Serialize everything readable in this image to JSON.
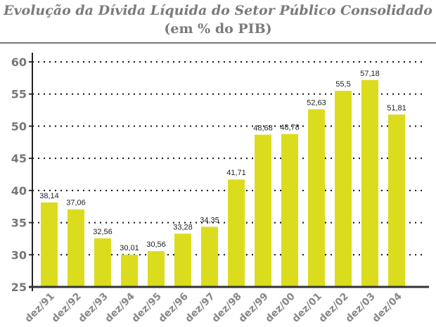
{
  "chart_data": {
    "type": "bar",
    "title": "Evolução da Dívida Líquida do Setor Público Consolidado",
    "subtitle": "(em % do PIB)",
    "categories": [
      "dez/91",
      "dez/92",
      "dez/93",
      "dez/94",
      "dez/95",
      "dez/96",
      "dez/97",
      "dez/98",
      "dez/99",
      "dez/00",
      "dez/01",
      "dez/02",
      "dez/03",
      "dez/04"
    ],
    "values": [
      38.14,
      37.06,
      32.56,
      30.01,
      30.56,
      33.28,
      34.35,
      41.71,
      48.68,
      48.78,
      52.63,
      55.5,
      57.18,
      51.81
    ],
    "data_labels": [
      "38,14",
      "37,06",
      "32,56",
      "30,01",
      "30,56",
      "33,28",
      "34,35",
      "41,71",
      "48,68",
      "48,78",
      "52,63",
      "55,5",
      "57,18",
      "51,81"
    ],
    "yticks": [
      "25",
      "30",
      "35",
      "40",
      "45",
      "50",
      "55",
      "60"
    ],
    "ylim": [
      25,
      61
    ],
    "grid": "dotted horizontal",
    "bar_color": "#dcdc1e",
    "xlabel": "",
    "ylabel": ""
  }
}
